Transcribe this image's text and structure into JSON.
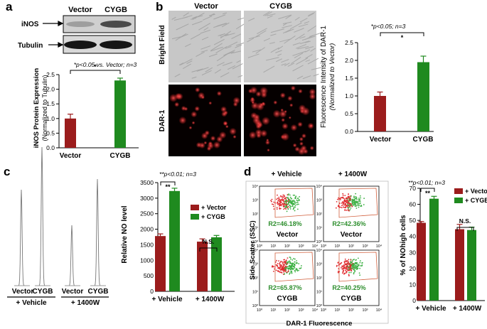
{
  "panel_a": {
    "letter": "a",
    "blot": {
      "col_labels": [
        "Vector",
        "CYGB"
      ],
      "row_labels": [
        "iNOS",
        "Tubulin"
      ]
    },
    "significance": "*p<0.05 vs. Vector; n=3",
    "star": "*",
    "ylabel": "iNOS Protein Expression",
    "ylabel_sub": "(Normalized to Tubulin)",
    "yticks": [
      "0.0",
      "0.5",
      "1.0",
      "1.5",
      "2.0",
      "2.5"
    ]
  },
  "panel_b": {
    "letter": "b",
    "col_labels": [
      "Vector",
      "CYGB"
    ],
    "row_labels": [
      "Bright Field",
      "DAR-1"
    ],
    "significance": "*p<0.05; n=3",
    "star": "*",
    "ylabel": "Fluorescence Intensity of DAR-1",
    "ylabel_sub": "(Normalized to Vector)",
    "yticks": [
      "0.0",
      "0.5",
      "1.0",
      "1.5",
      "2.0",
      "2.5"
    ]
  },
  "panel_c": {
    "letter": "c",
    "trace_labels": [
      "Vector",
      "CYGB",
      "Vector",
      "CYGB"
    ],
    "group_labels": [
      "+ Vehicle",
      "+ 1400W"
    ],
    "significance": "**p<0.01; n=3",
    "star": "**",
    "ns": "N.S.",
    "ylabel": "Relative NO level",
    "yticks": [
      "0",
      "500",
      "1000",
      "1500",
      "2000",
      "2500",
      "3000",
      "3500"
    ],
    "legend": [
      "+ Vector",
      "+ CYGB"
    ]
  },
  "panel_d": {
    "letter": "d",
    "col_labels": [
      "+ Vehicle",
      "+ 1400W"
    ],
    "gate_values": [
      "R2=46.18%",
      "R2=42.36%",
      "R2=65.87%",
      "R2=40.25%"
    ],
    "plot_labels": [
      "Vector",
      "Vector",
      "CYGB",
      "CYGB"
    ],
    "axis_ticks": [
      "10⁰",
      "10¹",
      "10²",
      "10³",
      "10⁴"
    ],
    "ylabel": "Side Scatter (SSC)",
    "xlabel": "DAR-1 Fluorescence",
    "bar": {
      "significance": "**p<0.01; n=3",
      "star": "**",
      "ns": "N.S.",
      "ylabel": "% of NOhigh cells",
      "yticks": [
        "0",
        "10",
        "20",
        "30",
        "40",
        "50",
        "60",
        "70"
      ],
      "legend": [
        "+ Vector",
        "+ CYGB"
      ],
      "group_labels": [
        "+ Vehicle",
        "+ 1400W"
      ]
    }
  },
  "colors": {
    "vector": "#9b1c1c",
    "cygb": "#1f8a1f"
  },
  "chart_data": [
    {
      "type": "bar",
      "panel": "a",
      "categories": [
        "Vector",
        "CYGB"
      ],
      "values": [
        1.0,
        2.3
      ],
      "errors": [
        0.15,
        0.08
      ],
      "ylabel": "iNOS Protein Expression (Normalized to Tubulin)",
      "ylim": [
        0,
        2.5
      ]
    },
    {
      "type": "bar",
      "panel": "b",
      "categories": [
        "Vector",
        "CYGB"
      ],
      "values": [
        1.0,
        1.95
      ],
      "errors": [
        0.11,
        0.17
      ],
      "ylabel": "Fluorescence Intensity of DAR-1 (Normalized to Vector)",
      "ylim": [
        0,
        2.5
      ]
    },
    {
      "type": "bar",
      "panel": "c",
      "categories": [
        "+ Vehicle",
        "+ 1400W"
      ],
      "series": [
        {
          "name": "+ Vector",
          "values": [
            1780,
            1600
          ],
          "errors": [
            70,
            90
          ]
        },
        {
          "name": "+ CYGB",
          "values": [
            3230,
            1740
          ],
          "errors": [
            90,
            60
          ]
        }
      ],
      "ylabel": "Relative NO level",
      "ylim": [
        0,
        3500
      ]
    },
    {
      "type": "bar",
      "panel": "d",
      "categories": [
        "+ Vehicle",
        "+ 1400W"
      ],
      "series": [
        {
          "name": "+ Vector",
          "values": [
            48.5,
            44.5
          ],
          "errors": [
            0.8,
            3.0
          ]
        },
        {
          "name": "+ CYGB",
          "values": [
            63.5,
            44.0
          ],
          "errors": [
            1.5,
            1.8
          ]
        }
      ],
      "ylabel": "% of NOhigh cells",
      "ylim": [
        0,
        70
      ]
    }
  ]
}
